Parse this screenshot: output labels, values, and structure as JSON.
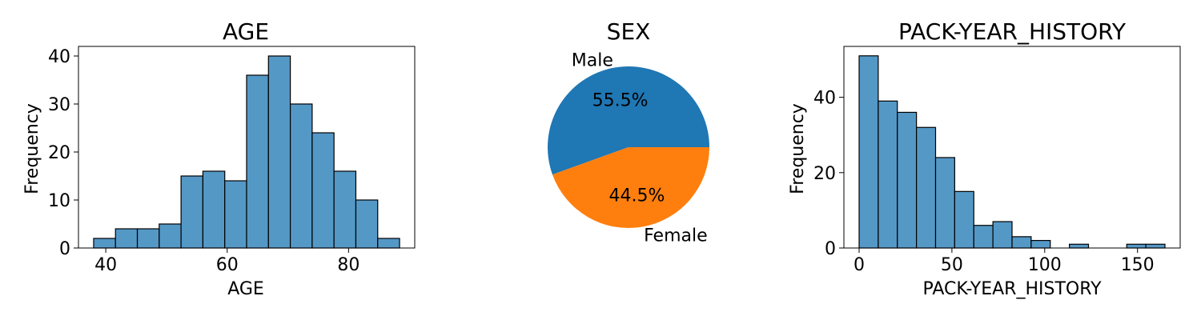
{
  "colors": {
    "hist_fill": "#5498c6",
    "pie_slice_1": "#1f77b4",
    "pie_slice_2": "#ff7f0e"
  },
  "chart_data": [
    {
      "type": "bar",
      "title": "AGE",
      "xlabel": "AGE",
      "ylabel": "Frequency",
      "bin_edges": [
        38,
        41.6,
        45.2,
        48.8,
        52.4,
        56,
        59.6,
        63.2,
        66.8,
        70.4,
        74,
        77.6,
        81.2,
        84.8,
        88.4
      ],
      "values": [
        2,
        4,
        4,
        5,
        15,
        16,
        14,
        36,
        40,
        30,
        24,
        16,
        10,
        2
      ],
      "xlim": [
        35.5,
        90.9
      ],
      "ylim": [
        0,
        42
      ],
      "xticks": [
        40,
        60,
        80
      ],
      "yticks": [
        0,
        10,
        20,
        30,
        40
      ],
      "grid": false
    },
    {
      "type": "pie",
      "title": "SEX",
      "labels": [
        "Male",
        "Female"
      ],
      "values": [
        55.5,
        44.5
      ],
      "autopct": [
        "55.5%",
        "44.5%"
      ],
      "grid": false
    },
    {
      "type": "bar",
      "title": "PACK-YEAR_HISTORY",
      "xlabel": "PACK-YEAR_HISTORY",
      "ylabel": "Frequency",
      "bin_edges": [
        0,
        10.3,
        20.6,
        30.9,
        41.2,
        51.5,
        61.8,
        72.1,
        82.4,
        92.7,
        103,
        113.3,
        123.6,
        133.9,
        144.2,
        154.5,
        164.8
      ],
      "values": [
        51,
        39,
        36,
        32,
        24,
        15,
        6,
        7,
        3,
        2,
        0,
        1,
        0,
        0,
        1,
        1
      ],
      "xlim": [
        -8.2,
        173
      ],
      "ylim": [
        0,
        53.5
      ],
      "xticks": [
        0,
        50,
        100,
        150
      ],
      "yticks": [
        0,
        20,
        40
      ],
      "grid": false
    }
  ]
}
